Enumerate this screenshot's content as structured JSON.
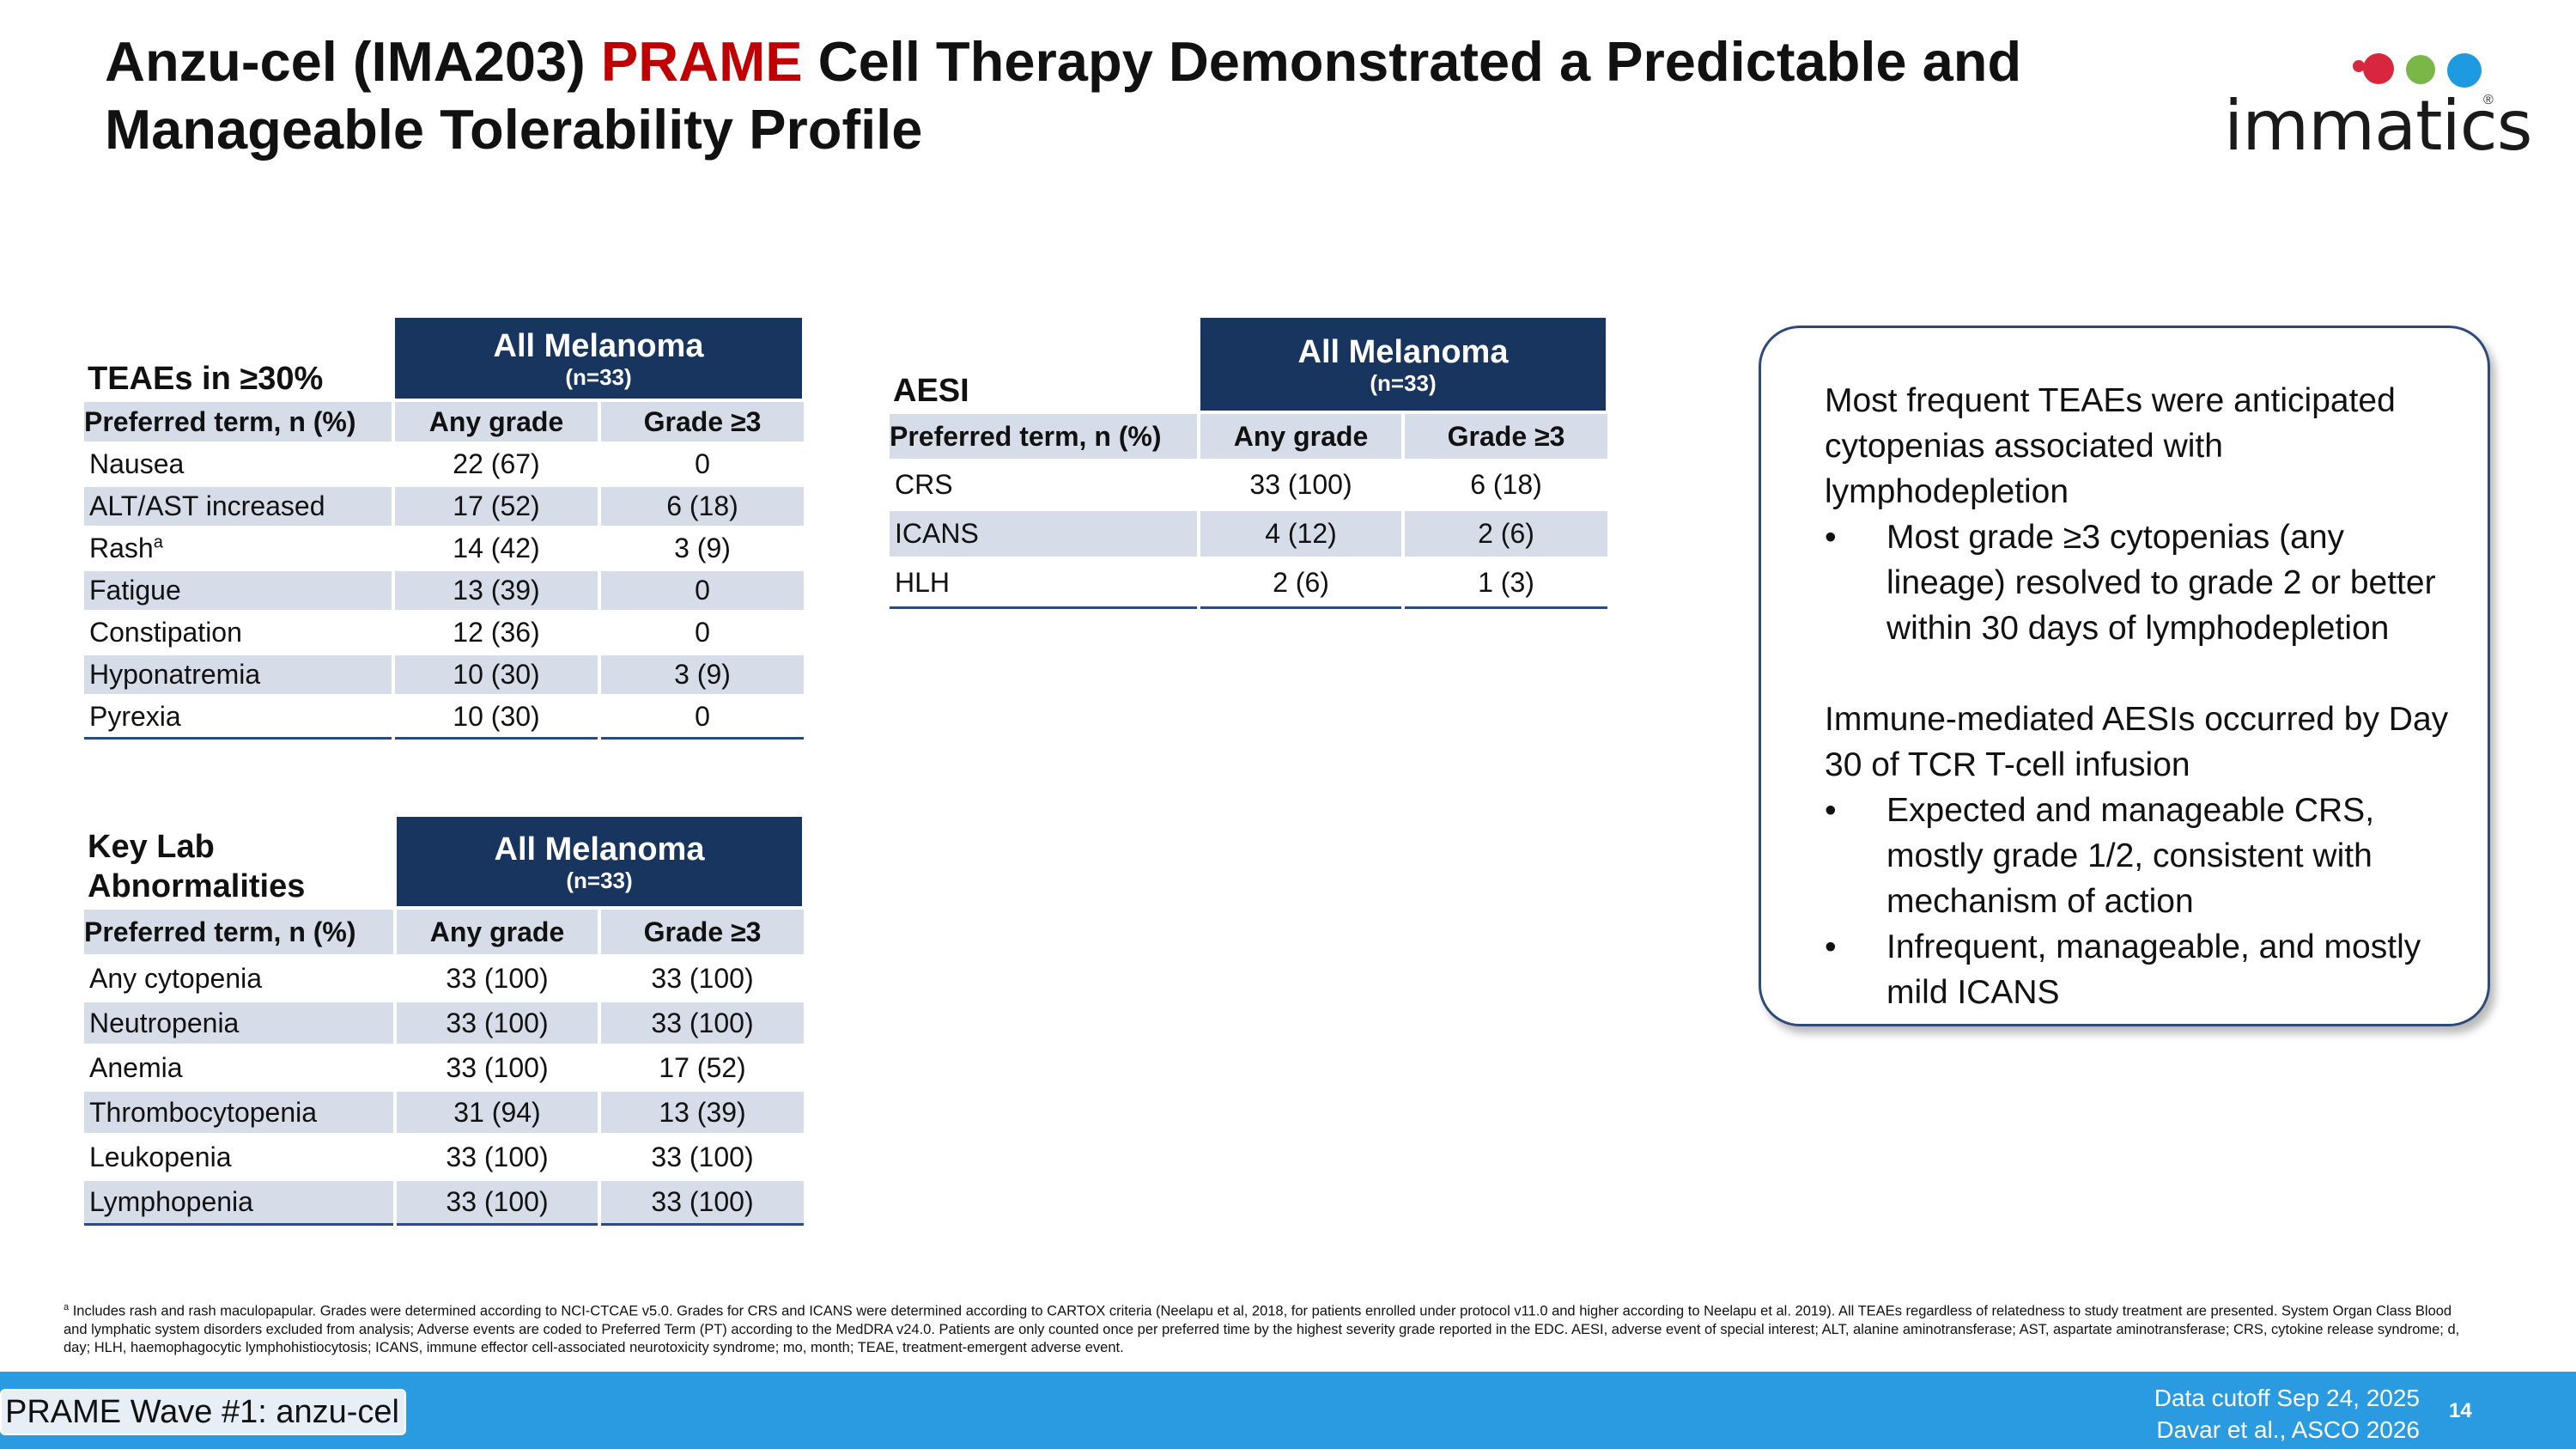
{
  "slide": {
    "title_part1": "Anzu-cel (IMA203) ",
    "title_highlight": "PRAME",
    "title_part2": " Cell Therapy Demonstrated a Predictable and Manageable Tolerability Profile"
  },
  "logo": {
    "text": "immatics",
    "dot_colors": [
      "#d7263d",
      "#7ab648",
      "#1e9be0"
    ]
  },
  "teae_table": {
    "section_title": "TEAEs in ≥30%",
    "group_header": "All Melanoma",
    "group_n": "(n=33)",
    "col_term": "Preferred term, n (%)",
    "col_any": "Any grade",
    "col_g3": "Grade ≥3",
    "rows": [
      {
        "term": "Nausea",
        "sup": "",
        "any": "22 (67)",
        "g3": "0"
      },
      {
        "term": "ALT/AST increased",
        "sup": "",
        "any": "17 (52)",
        "g3": "6 (18)"
      },
      {
        "term": "Rash",
        "sup": "a",
        "any": "14 (42)",
        "g3": "3 (9)"
      },
      {
        "term": "Fatigue",
        "sup": "",
        "any": "13 (39)",
        "g3": "0"
      },
      {
        "term": "Constipation",
        "sup": "",
        "any": "12 (36)",
        "g3": "0"
      },
      {
        "term": "Hyponatremia",
        "sup": "",
        "any": "10 (30)",
        "g3": "3 (9)"
      },
      {
        "term": "Pyrexia",
        "sup": "",
        "any": "10 (30)",
        "g3": "0"
      }
    ]
  },
  "lab_table": {
    "section_title_1": "Key Lab",
    "section_title_2": "Abnormalities",
    "group_header": "All Melanoma",
    "group_n": "(n=33)",
    "col_term": "Preferred term, n (%)",
    "col_any": "Any grade",
    "col_g3": "Grade ≥3",
    "rows": [
      {
        "term": "Any cytopenia",
        "any": "33 (100)",
        "g3": "33 (100)"
      },
      {
        "term": "Neutropenia",
        "any": "33 (100)",
        "g3": "33 (100)"
      },
      {
        "term": "Anemia",
        "any": "33 (100)",
        "g3": "17 (52)"
      },
      {
        "term": "Thrombocytopenia",
        "any": "31 (94)",
        "g3": "13 (39)"
      },
      {
        "term": "Leukopenia",
        "any": "33 (100)",
        "g3": "33 (100)"
      },
      {
        "term": "Lymphopenia",
        "any": "33 (100)",
        "g3": "33 (100)"
      }
    ]
  },
  "aesi_table": {
    "section_title": "AESI",
    "group_header": "All Melanoma",
    "group_n": "(n=33)",
    "col_term": "Preferred term, n (%)",
    "col_any": "Any grade",
    "col_g3": "Grade ≥3",
    "rows": [
      {
        "term": "CRS",
        "any": "33 (100)",
        "g3": "6 (18)"
      },
      {
        "term": "ICANS",
        "any": "4 (12)",
        "g3": "2 (6)"
      },
      {
        "term": "HLH",
        "any": "2 (6)",
        "g3": "1 (3)"
      }
    ]
  },
  "callout": {
    "para1": "Most frequent TEAEs were anticipated cytopenias associated with lymphodepletion",
    "bullet1": "Most grade ≥3 cytopenias (any lineage) resolved to grade 2 or better within 30 days of lymphodepletion",
    "para2": "Immune-mediated AESIs occurred by Day 30 of TCR T-cell infusion",
    "bullet2": "Expected and manageable CRS, mostly grade 1/2, consistent with mechanism of action",
    "bullet3": "Infrequent, manageable, and mostly mild ICANS",
    "bullet_char": "•"
  },
  "footnote": {
    "sup": "a",
    "text": " Includes rash and rash maculopapular. Grades were determined according to NCI-CTCAE v5.0. Grades for CRS and ICANS were determined according to CARTOX criteria (Neelapu et al, 2018, for patients enrolled under protocol v11.0 and higher according to Neelapu et al. 2019). All TEAEs regardless of relatedness to study treatment are presented. System Organ Class Blood and lymphatic system disorders excluded from analysis; Adverse events are coded to Preferred Term (PT) according to the MedDRA v24.0. Patients are only counted once per preferred time by the highest severity grade reported in the EDC. AESI, adverse event of special interest; ALT, alanine aminotransferase; AST, aspartate aminotransferase; CRS, cytokine release syndrome; d, day; HLH, haemophagocytic lymphohistiocytosis; ICANS, immune effector cell-associated neurotoxicity syndrome; mo, month; TEAE, treatment-emergent adverse event."
  },
  "footer": {
    "badge": "PRAME Wave #1: anzu-cel",
    "cutoff": "Data cutoff Sep 24, 2025",
    "citation": "Davar et al., ASCO 2026",
    "page_number": "14"
  }
}
